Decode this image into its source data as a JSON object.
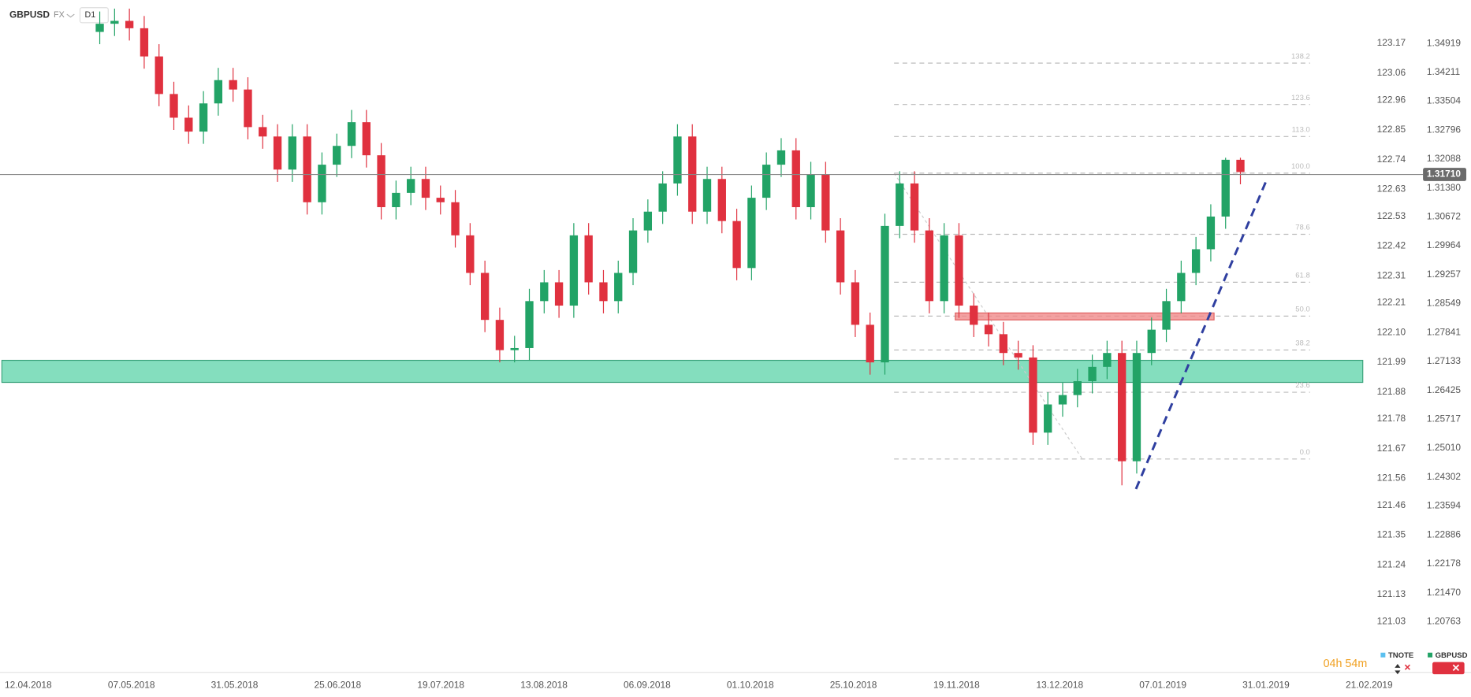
{
  "chart_data": {
    "type": "candlestick",
    "symbol": "GBPUSD",
    "market": "FX",
    "interval": "D1",
    "up_color": "#22a366",
    "down_color": "#e0313f",
    "ylim": [
      1.1952,
      1.35978
    ],
    "yticks": [
      {
        "value": 1.34919,
        "label": "1.34919"
      },
      {
        "value": 1.34211,
        "label": "1.34211"
      },
      {
        "value": 1.33504,
        "label": "1.33504"
      },
      {
        "value": 1.32796,
        "label": "1.32796"
      },
      {
        "value": 1.32088,
        "label": "1.32088"
      },
      {
        "value": 1.3138,
        "label": "1.31380"
      },
      {
        "value": 1.30672,
        "label": "1.30672"
      },
      {
        "value": 1.29964,
        "label": "1.29964"
      },
      {
        "value": 1.29257,
        "label": "1.29257"
      },
      {
        "value": 1.28549,
        "label": "1.28549"
      },
      {
        "value": 1.27841,
        "label": "1.27841"
      },
      {
        "value": 1.27133,
        "label": "1.27133"
      },
      {
        "value": 1.26425,
        "label": "1.26425"
      },
      {
        "value": 1.25717,
        "label": "1.25717"
      },
      {
        "value": 1.2501,
        "label": "1.25010"
      },
      {
        "value": 1.24302,
        "label": "1.24302"
      },
      {
        "value": 1.23594,
        "label": "1.23594"
      },
      {
        "value": 1.22886,
        "label": "1.22886"
      },
      {
        "value": 1.22178,
        "label": "1.22178"
      },
      {
        "value": 1.2147,
        "label": "1.21470"
      },
      {
        "value": 1.20763,
        "label": "1.20763"
      }
    ],
    "y2lim": [
      120.842,
      123.33
    ],
    "y2ticks": [
      123.17,
      123.06,
      122.96,
      122.85,
      122.74,
      122.63,
      122.53,
      122.42,
      122.31,
      122.21,
      {
        "value": 122.1,
        "label": "122.10"
      },
      121.99,
      121.88,
      121.78,
      121.67,
      121.56,
      121.46,
      121.35,
      121.24,
      121.13,
      121.03
    ],
    "x_labels": [
      "12.04.2018",
      "07.05.2018",
      "31.05.2018",
      "25.06.2018",
      "19.07.2018",
      "13.08.2018",
      "06.09.2018",
      "01.10.2018",
      "25.10.2018",
      "19.11.2018",
      "13.12.2018",
      "07.01.2019",
      "31.01.2019",
      "21.02.2019"
    ],
    "ohlc": [
      [
        1.352,
        1.357,
        1.349,
        1.354
      ],
      [
        1.354,
        1.3577,
        1.351,
        1.3547
      ],
      [
        1.3547,
        1.3577,
        1.3499,
        1.3529
      ],
      [
        1.3529,
        1.3559,
        1.343,
        1.346
      ],
      [
        1.346,
        1.349,
        1.3338,
        1.3368
      ],
      [
        1.3368,
        1.3398,
        1.328,
        1.331
      ],
      [
        1.331,
        1.334,
        1.3246,
        1.3276
      ],
      [
        1.3276,
        1.3375,
        1.3246,
        1.3345
      ],
      [
        1.3345,
        1.3432,
        1.3315,
        1.3402
      ],
      [
        1.3402,
        1.3432,
        1.3349,
        1.3379
      ],
      [
        1.3379,
        1.3409,
        1.3257,
        1.3287
      ],
      [
        1.3287,
        1.3317,
        1.3234,
        1.3264
      ],
      [
        1.3264,
        1.3294,
        1.3153,
        1.3183
      ],
      [
        1.3183,
        1.3294,
        1.3153,
        1.3264
      ],
      [
        1.3264,
        1.3294,
        1.3073,
        1.3103
      ],
      [
        1.3103,
        1.3225,
        1.3073,
        1.3195
      ],
      [
        1.3195,
        1.3271,
        1.3165,
        1.3241
      ],
      [
        1.3241,
        1.3329,
        1.3211,
        1.3299
      ],
      [
        1.3299,
        1.3329,
        1.3188,
        1.3218
      ],
      [
        1.3218,
        1.3248,
        1.3061,
        1.3091
      ],
      [
        1.3091,
        1.3156,
        1.3061,
        1.3126
      ],
      [
        1.3126,
        1.319,
        1.3096,
        1.316
      ],
      [
        1.316,
        1.319,
        1.3084,
        1.3114
      ],
      [
        1.3114,
        1.3144,
        1.3073,
        1.3103
      ],
      [
        1.3103,
        1.3133,
        1.2992,
        1.3022
      ],
      [
        1.3022,
        1.3052,
        1.29,
        1.293
      ],
      [
        1.293,
        1.296,
        1.2785,
        1.2815
      ],
      [
        1.2815,
        1.2845,
        1.2711,
        1.2741
      ],
      [
        1.2741,
        1.2776,
        1.2711,
        1.2746
      ],
      [
        1.2746,
        1.2891,
        1.2716,
        1.2861
      ],
      [
        1.2861,
        1.2937,
        1.2831,
        1.2907
      ],
      [
        1.2907,
        1.2937,
        1.282,
        1.285
      ],
      [
        1.285,
        1.3052,
        1.282,
        1.3022
      ],
      [
        1.3022,
        1.3052,
        1.2877,
        1.2907
      ],
      [
        1.2907,
        1.2937,
        1.2831,
        1.2861
      ],
      [
        1.2861,
        1.296,
        1.2831,
        1.293
      ],
      [
        1.293,
        1.3064,
        1.29,
        1.3034
      ],
      [
        1.3034,
        1.311,
        1.3004,
        1.308
      ],
      [
        1.308,
        1.3179,
        1.305,
        1.3149
      ],
      [
        1.3149,
        1.3294,
        1.3119,
        1.3264
      ],
      [
        1.3264,
        1.3294,
        1.305,
        1.308
      ],
      [
        1.308,
        1.319,
        1.305,
        1.316
      ],
      [
        1.316,
        1.319,
        1.3027,
        1.3057
      ],
      [
        1.3057,
        1.3087,
        1.2912,
        1.2942
      ],
      [
        1.2942,
        1.3144,
        1.2912,
        1.3114
      ],
      [
        1.3114,
        1.3225,
        1.3084,
        1.3195
      ],
      [
        1.3195,
        1.326,
        1.3165,
        1.323
      ],
      [
        1.323,
        1.326,
        1.3061,
        1.3091
      ],
      [
        1.3091,
        1.3202,
        1.3061,
        1.3172
      ],
      [
        1.3172,
        1.3202,
        1.3004,
        1.3034
      ],
      [
        1.3034,
        1.3064,
        1.2877,
        1.2907
      ],
      [
        1.2907,
        1.2937,
        1.2773,
        1.2803
      ],
      [
        1.2803,
        1.2833,
        1.2681,
        1.2711
      ],
      [
        1.2711,
        1.3075,
        1.2681,
        1.3045
      ],
      [
        1.3045,
        1.3179,
        1.3015,
        1.3149
      ],
      [
        1.3149,
        1.3179,
        1.3004,
        1.3034
      ],
      [
        1.3034,
        1.3064,
        1.2831,
        1.2861
      ],
      [
        1.2861,
        1.3052,
        1.2831,
        1.3022
      ],
      [
        1.3022,
        1.3052,
        1.282,
        1.285
      ],
      [
        1.285,
        1.288,
        1.2773,
        1.2803
      ],
      [
        1.2803,
        1.2833,
        1.275,
        1.278
      ],
      [
        1.278,
        1.281,
        1.2704,
        1.2734
      ],
      [
        1.2734,
        1.2764,
        1.2693,
        1.2723
      ],
      [
        1.2723,
        1.2753,
        1.2509,
        1.2539
      ],
      [
        1.2539,
        1.2638,
        1.2509,
        1.2608
      ],
      [
        1.2608,
        1.2661,
        1.2578,
        1.2631
      ],
      [
        1.2631,
        1.2695,
        1.2601,
        1.2665
      ],
      [
        1.2665,
        1.273,
        1.2635,
        1.27
      ],
      [
        1.27,
        1.2764,
        1.267,
        1.2734
      ],
      [
        1.2734,
        1.2764,
        1.241,
        1.2469
      ],
      [
        1.2469,
        1.2764,
        1.2439,
        1.2734
      ],
      [
        1.2734,
        1.2821,
        1.2704,
        1.2791
      ],
      [
        1.2791,
        1.2891,
        1.2761,
        1.2861
      ],
      [
        1.2861,
        1.296,
        1.2831,
        1.293
      ],
      [
        1.293,
        1.3018,
        1.29,
        1.2988
      ],
      [
        1.2988,
        1.3098,
        1.2958,
        1.3068
      ],
      [
        1.3068,
        1.3212,
        1.3038,
        1.3207
      ],
      [
        1.3207,
        1.3212,
        1.3147,
        1.3177
      ]
    ],
    "current_price": {
      "value": 1.3171,
      "label": "1.31710"
    },
    "support_zone": {
      "from": 1.2662,
      "to": 1.2716,
      "color": "#6fd8b3"
    },
    "resistance_zone": {
      "from": 1.2815,
      "to": 1.2832,
      "color": "#f08a8a"
    },
    "fib_levels": [
      {
        "label": "138.2",
        "price": 1.34436
      },
      {
        "label": "123.6",
        "price": 1.33423
      },
      {
        "label": "113.0",
        "price": 1.3264
      },
      {
        "label": "100.0",
        "price": 1.31742
      },
      {
        "label": "78.6",
        "price": 1.30246
      },
      {
        "label": "61.8",
        "price": 1.29072
      },
      {
        "label": "50.0",
        "price": 1.28243
      },
      {
        "label": "38.2",
        "price": 1.27414
      },
      {
        "label": "23.6",
        "price": 1.26378
      },
      {
        "label": "0.0",
        "price": 1.24744
      }
    ],
    "trendline": {
      "from": 1.2401,
      "to": 1.3164,
      "color": "#2f3fa0"
    },
    "countdown": "04h 54m",
    "legend": [
      {
        "name": "TNOTE",
        "color": "#5bc0f0"
      },
      {
        "name": "GBPUSD",
        "color": "#22a366"
      }
    ]
  }
}
